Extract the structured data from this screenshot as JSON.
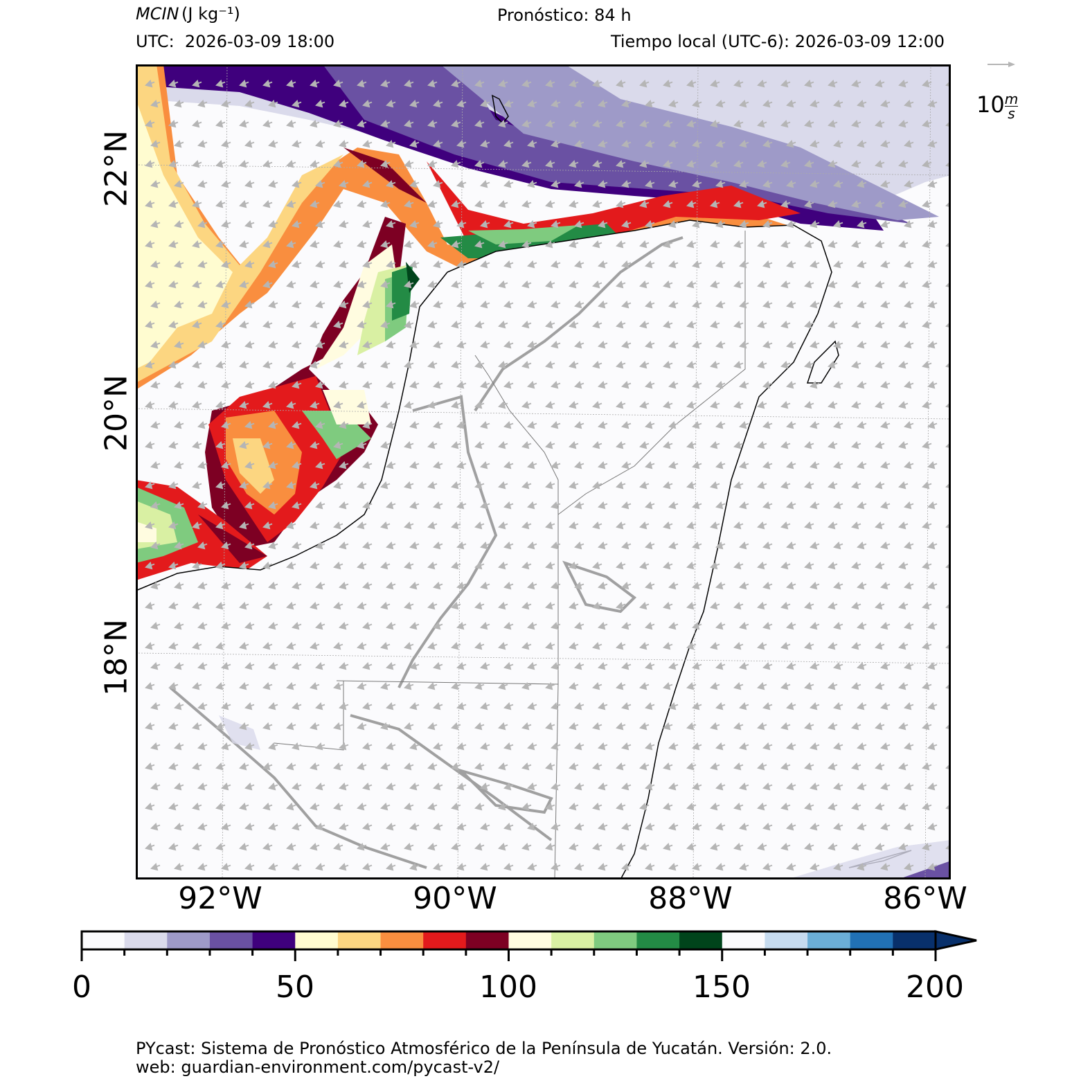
{
  "header": {
    "variable": "MCIN",
    "units": "(J kg⁻¹)",
    "forecast": "Pronóstico: 84 h",
    "utc_time": "UTC:  2026-03-09 18:00",
    "local_time": "Tiempo local (UTC-6): 2026-03-09 12:00"
  },
  "map": {
    "lat_labels": [
      "22°N",
      "20°N",
      "18°N"
    ],
    "lon_labels": [
      "92°W",
      "90°W",
      "88°W",
      "86°W"
    ],
    "lat_range": [
      16.2,
      22.8
    ],
    "lon_range": [
      -92.7,
      -86.2
    ],
    "wind_direction": "northeast-to-southwest",
    "wind_key": {
      "arrow_icon": "wind-reference-arrow-icon",
      "label": "10",
      "unit_num": "m",
      "unit_den": "s"
    }
  },
  "colorbar": {
    "ticks": [
      "0",
      "50",
      "100",
      "150",
      "200"
    ],
    "range": [
      0,
      200
    ],
    "step": 10,
    "extend": "max",
    "colors": [
      "#fbfbfd",
      "#dadaeb",
      "#9e9ac8",
      "#6a51a3",
      "#3f007d",
      "#fffcd0",
      "#fcd681",
      "#f98e3f",
      "#e31a1c",
      "#7d0023",
      "#fffce0",
      "#d9f0a3",
      "#7fcb7f",
      "#238b45",
      "#00441b",
      "#fbfbfd",
      "#c6dbef",
      "#6baed6",
      "#2171b5",
      "#08306b"
    ]
  },
  "footer": {
    "line1": "PYcast: Sistema de Pronóstico Atmosférico de la Península de Yucatán. Versión: 2.0.",
    "line2": "web: guardian-environment.com/pycast-v2/"
  }
}
